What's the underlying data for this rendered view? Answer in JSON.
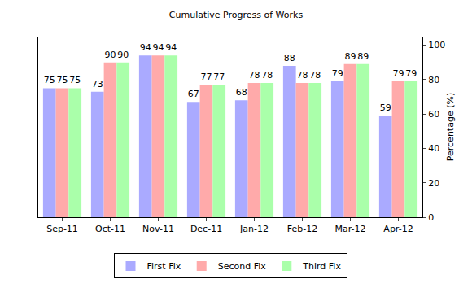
{
  "chart_data": {
    "type": "bar",
    "title": "Cumulative Progress of Works",
    "y_label": "Percentage (%)",
    "categories": [
      "Sep-11",
      "Oct-11",
      "Nov-11",
      "Dec-11",
      "Jan-12",
      "Feb-12",
      "Mar-12",
      "Apr-12"
    ],
    "series": [
      {
        "name": "First Fix",
        "color": "#aaaaff",
        "values": [
          75,
          73,
          94,
          67,
          68,
          88,
          79,
          59
        ]
      },
      {
        "name": "Second Fix",
        "color": "#ffaaaa",
        "values": [
          75,
          90,
          94,
          77,
          78,
          78,
          89,
          79
        ]
      },
      {
        "name": "Third Fix",
        "color": "#aaffaa",
        "values": [
          75,
          90,
          94,
          77,
          78,
          78,
          89,
          79
        ]
      }
    ],
    "ylim": [
      0,
      105
    ],
    "yticks": [
      0,
      20,
      40,
      60,
      80,
      100
    ],
    "grid": false,
    "legend": "bottom",
    "data_labels": true
  }
}
